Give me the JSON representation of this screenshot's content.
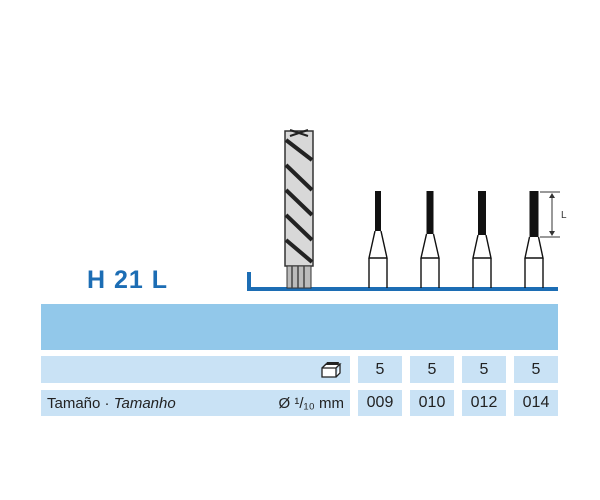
{
  "title": "H 21 L",
  "dimension_label": "L",
  "package_icon": "package-box-icon",
  "rows": {
    "quantity": {
      "values": [
        "5",
        "5",
        "5",
        "5"
      ]
    },
    "size": {
      "label_es": "Tamaño",
      "separator": " · ",
      "label_pt": "Tamanho",
      "unit": "Ø ¹/₁₀ mm",
      "values": [
        "009",
        "010",
        "012",
        "014"
      ]
    }
  },
  "colors": {
    "brand_blue": "#1c6db4",
    "band": "#92c8ea",
    "row": "#c9e2f5"
  }
}
